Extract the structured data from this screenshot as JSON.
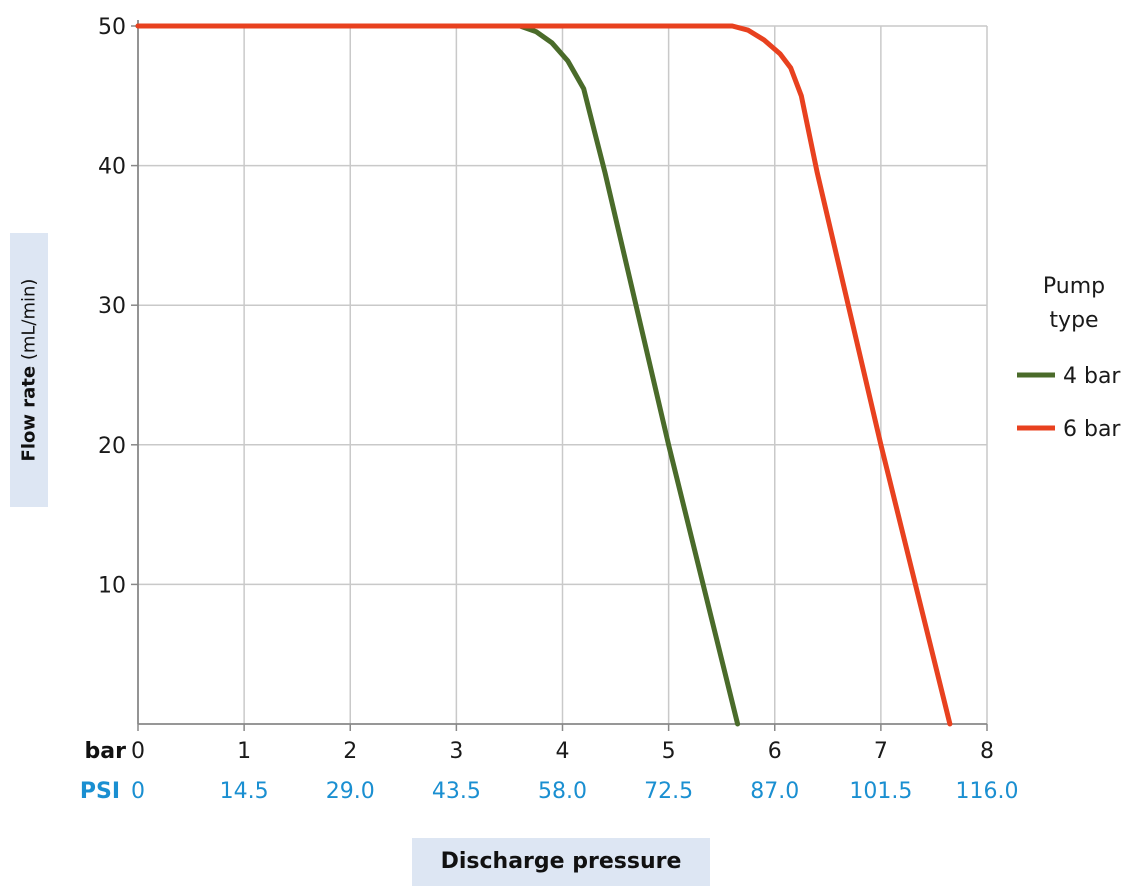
{
  "chart_data": {
    "type": "line",
    "ylabel_bold": "Flow rate",
    "ylabel_unit": "(mL/min)",
    "xlabel": "Discharge pressure",
    "x_unit_primary": "bar",
    "x_unit_secondary": "PSI",
    "xlim": [
      0,
      8
    ],
    "ylim": [
      0,
      50
    ],
    "x_ticks": [
      0,
      1,
      2,
      3,
      4,
      5,
      6,
      7,
      8
    ],
    "x_tick_labels": [
      "0",
      "1",
      "2",
      "3",
      "4",
      "5",
      "6",
      "7",
      "8"
    ],
    "psi_tick_labels": [
      "0",
      "14.5",
      "29.0",
      "43.5",
      "58.0",
      "72.5",
      "87.0",
      "101.5",
      "116.0"
    ],
    "y_ticks": [
      10,
      20,
      30,
      40,
      50
    ],
    "y_tick_labels": [
      "10",
      "20",
      "30",
      "40",
      "50"
    ],
    "grid": true,
    "legend": {
      "title_line1": "Pump",
      "title_line2": "type",
      "placement": "right"
    },
    "series": [
      {
        "name": "4 bar",
        "color": "#4a6b2a",
        "points": [
          [
            0,
            50
          ],
          [
            3.6,
            50
          ],
          [
            3.75,
            49.6
          ],
          [
            3.9,
            48.8
          ],
          [
            4.05,
            47.5
          ],
          [
            4.2,
            45.5
          ],
          [
            4.3,
            42.5
          ],
          [
            4.4,
            39.5
          ],
          [
            5.0,
            20
          ],
          [
            5.65,
            0
          ]
        ]
      },
      {
        "name": "6 bar",
        "color": "#e8411f",
        "points": [
          [
            0,
            50
          ],
          [
            5.6,
            50
          ],
          [
            5.75,
            49.7
          ],
          [
            5.9,
            49
          ],
          [
            6.05,
            48
          ],
          [
            6.15,
            47
          ],
          [
            6.25,
            45
          ],
          [
            6.4,
            39.5
          ],
          [
            7.0,
            20
          ],
          [
            7.65,
            0
          ]
        ]
      }
    ]
  }
}
